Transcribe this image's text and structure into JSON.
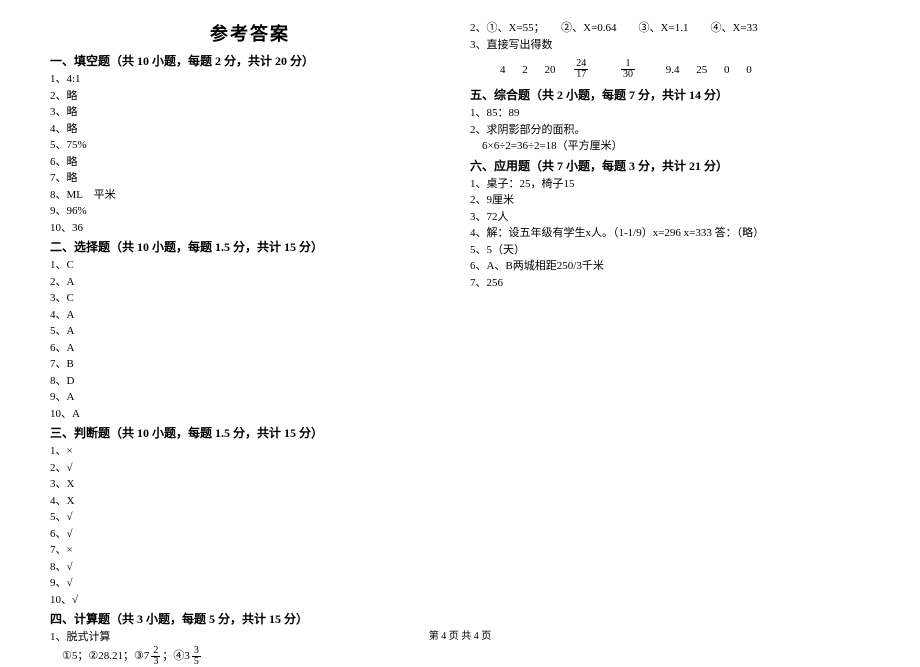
{
  "title": "参考答案",
  "footer": "第 4 页 共 4 页",
  "left": {
    "s1": {
      "head": "一、填空题（共 10 小题，每题 2 分，共计 20 分）",
      "items": [
        "1、4:1",
        "2、略",
        "3、略",
        "4、略",
        "5、75%",
        "6、略",
        "7、略",
        "8、ML　平米",
        "9、96%",
        "10、36"
      ]
    },
    "s2": {
      "head": "二、选择题（共 10 小题，每题 1.5 分，共计 15 分）",
      "items": [
        "1、C",
        "2、A",
        "3、C",
        "4、A",
        "5、A",
        "6、A",
        "7、B",
        "8、D",
        "9、A",
        "10、A"
      ]
    },
    "s3": {
      "head": "三、判断题（共 10 小题，每题 1.5 分，共计 15 分）",
      "items": [
        "1、×",
        "2、√",
        "3、X",
        "4、X",
        "5、√",
        "6、√",
        "7、×",
        "8、√",
        "9、√",
        "10、√"
      ]
    },
    "s4": {
      "head": "四、计算题（共 3 小题，每题 5 分，共计 15 分）",
      "line1": "1、脱式计算",
      "calc_prefix": "①5；②28.21；③7",
      "calc_mid": "；④3",
      "f1n": "2",
      "f1d": "3",
      "f2n": "3",
      "f2d": "5"
    }
  },
  "right": {
    "r1": "2、①、X=55；　　②、X=0.64　　③、X=1.1　　④、X=33",
    "r2": "3、直接写出得数",
    "ans": {
      "a": "4",
      "b": "2",
      "c": "20",
      "fn1": "24",
      "fd1": "17",
      "fn2": "1",
      "fd2": "30",
      "d": "9.4",
      "e": "25",
      "f": "0",
      "g": "0"
    },
    "s5": {
      "head": "五、综合题（共 2 小题，每题 7 分，共计 14 分）",
      "l1": "1、85：89",
      "l2": "2、求阴影部分的面积。",
      "l3": "6×6÷2=36÷2=18（平方厘米）"
    },
    "s6": {
      "head": "六、应用题（共 7 小题，每题 3 分，共计 21 分）",
      "items": [
        "1、桌子：25，椅子15",
        "2、9厘米",
        "3、72人",
        "4、解：设五年级有学生x人。（1-1/9）x=296 x=333 答：（略）",
        "5、5（天）",
        "6、A、B两城相距250/3千米",
        "7、256"
      ]
    }
  }
}
